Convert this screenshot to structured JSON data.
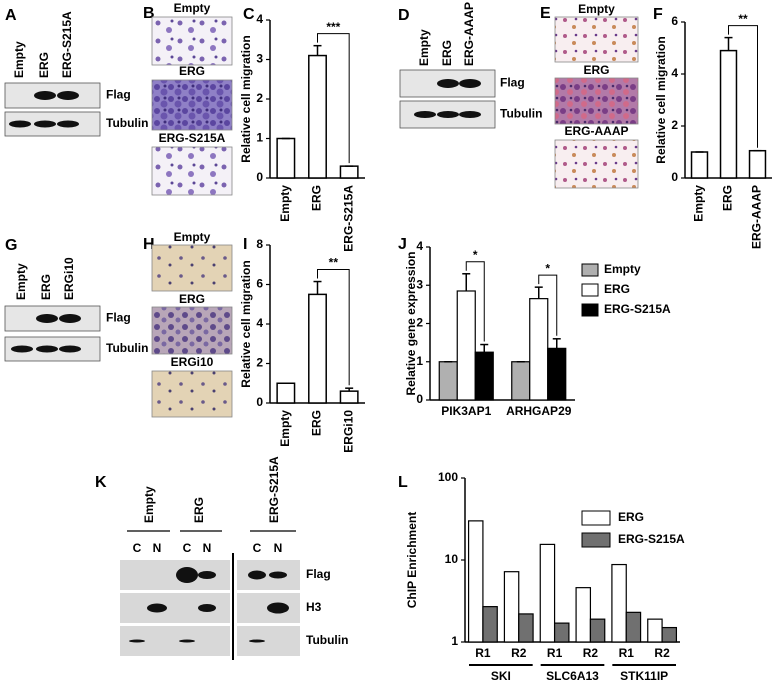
{
  "blots": [
    {
      "letter": "A",
      "lanes": [
        "Empty",
        "ERG",
        "ERG-S215A"
      ],
      "rows": [
        "Flag",
        "Tubulin"
      ]
    },
    {
      "letter": "D",
      "lanes": [
        "Empty",
        "ERG",
        "ERG-AAAP"
      ],
      "rows": [
        "Flag",
        "Tubulin"
      ]
    },
    {
      "letter": "G",
      "lanes": [
        "Empty",
        "ERG",
        "ERGi10"
      ],
      "rows": [
        "Flag",
        "Tubulin"
      ]
    }
  ],
  "micrographs": [
    {
      "letter": "B",
      "labels": [
        "Empty",
        "ERG",
        "ERG-S215A"
      ]
    },
    {
      "letter": "E",
      "labels": [
        "Empty",
        "ERG",
        "ERG-AAAP"
      ]
    },
    {
      "letter": "H",
      "labels": [
        "Empty",
        "ERG",
        "ERGi10"
      ]
    }
  ],
  "fractionation": {
    "letter": "K",
    "groups": [
      "Empty",
      "ERG",
      "ERG-S215A"
    ],
    "lanes": [
      "C",
      "N",
      "C",
      "N",
      "C",
      "N"
    ],
    "rows": [
      "Flag",
      "H3",
      "Tubulin"
    ]
  },
  "chart_data": [
    {
      "type": "bar",
      "letter": "C",
      "y_label": "Relative cell migration",
      "categories": [
        "Empty",
        "ERG",
        "ERG-S215A"
      ],
      "values": [
        1,
        3.1,
        0.3
      ],
      "errors": [
        0,
        0.25,
        0
      ],
      "color": "#ffffff",
      "ylim": [
        0,
        4
      ],
      "yticks": [
        0,
        1,
        2,
        3,
        4
      ],
      "significance": "***"
    },
    {
      "type": "bar",
      "letter": "F",
      "y_label": "Relative cell migration",
      "categories": [
        "Empty",
        "ERG",
        "ERG-AAAP"
      ],
      "values": [
        1,
        4.9,
        1.05
      ],
      "errors": [
        0,
        0.5,
        0
      ],
      "color": "#ffffff",
      "ylim": [
        0,
        6
      ],
      "yticks": [
        0,
        2,
        4,
        6
      ],
      "significance": "**"
    },
    {
      "type": "bar",
      "letter": "I",
      "y_label": "Relative cell migration",
      "categories": [
        "Empty",
        "ERG",
        "ERGi10"
      ],
      "values": [
        1,
        5.5,
        0.6
      ],
      "errors": [
        0,
        0.65,
        0.15
      ],
      "color": "#ffffff",
      "ylim": [
        0,
        8
      ],
      "yticks": [
        0,
        2,
        4,
        6,
        8
      ],
      "significance": "**"
    },
    {
      "type": "bar",
      "letter": "J",
      "y_label": "Relative gene expression",
      "categories": [
        "PIK3AP1",
        "ARHGAP29"
      ],
      "series": [
        {
          "name": "Empty",
          "color": "#b0b0b0",
          "values": [
            1,
            1
          ],
          "errors": [
            0,
            0
          ]
        },
        {
          "name": "ERG",
          "color": "#ffffff",
          "values": [
            2.85,
            2.65
          ],
          "errors": [
            0.45,
            0.3
          ]
        },
        {
          "name": "ERG-S215A",
          "color": "#000000",
          "values": [
            1.25,
            1.35
          ],
          "errors": [
            0.2,
            0.25
          ]
        }
      ],
      "ylim": [
        0,
        4
      ],
      "yticks": [
        0,
        1,
        2,
        3,
        4
      ],
      "significance": [
        "*",
        "*"
      ]
    },
    {
      "type": "bar",
      "letter": "L",
      "y_label": "ChIP Enrichment",
      "log_scale": true,
      "categories": [
        "R1",
        "R2",
        "R1",
        "R2",
        "R1",
        "R2"
      ],
      "groups": [
        "SKI",
        "SLC6A13",
        "STK11IP"
      ],
      "series": [
        {
          "name": "ERG",
          "color": "#ffffff",
          "values": [
            30,
            7.2,
            15.5,
            4.6,
            8.8,
            1.9
          ]
        },
        {
          "name": "ERG-S215A",
          "color": "#707070",
          "values": [
            2.7,
            2.2,
            1.7,
            1.9,
            2.3,
            1.5
          ]
        }
      ],
      "ylim": [
        1,
        100
      ],
      "yticks": [
        1,
        10,
        100
      ]
    }
  ]
}
